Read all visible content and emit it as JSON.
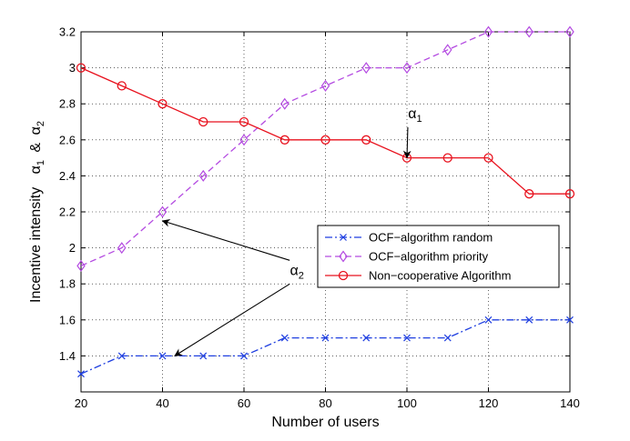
{
  "chart_data": {
    "type": "line",
    "title": "",
    "xlabel": "Number of users",
    "ylabel": "Incentive intensity",
    "ylabel_alpha1": "α",
    "ylabel_sub1": "1",
    "ylabel_amp": "&",
    "ylabel_alpha2": "α",
    "ylabel_sub2": "2",
    "xlim": [
      20,
      140
    ],
    "ylim": [
      1.2,
      3.2
    ],
    "xticks": [
      20,
      40,
      60,
      80,
      100,
      120,
      140
    ],
    "yticks": [
      1.4,
      1.6,
      1.8,
      2.0,
      2.2,
      2.4,
      2.6,
      2.8,
      3.0,
      3.2
    ],
    "ytick_labels": [
      "1.4",
      "1.6",
      "1.8",
      "2",
      "2.2",
      "2.4",
      "2.6",
      "2.8",
      "3",
      "3.2"
    ],
    "grid": true,
    "legend_position": "center-right",
    "x": [
      20,
      30,
      40,
      50,
      60,
      70,
      80,
      90,
      100,
      110,
      120,
      130,
      140
    ],
    "series": [
      {
        "name": "OCF−algorithm random",
        "color": "#1f3fe0",
        "marker": "x",
        "linestyle": "dashdot",
        "values": [
          1.3,
          1.4,
          1.4,
          1.4,
          1.4,
          1.5,
          1.5,
          1.5,
          1.5,
          1.5,
          1.6,
          1.6,
          1.6
        ]
      },
      {
        "name": "OCF−algorithm priority",
        "color": "#b44be1",
        "marker": "diamond",
        "linestyle": "dashed",
        "values": [
          1.9,
          2.0,
          2.2,
          2.4,
          2.6,
          2.8,
          2.9,
          3.0,
          3.0,
          3.1,
          3.2,
          3.2,
          3.2
        ]
      },
      {
        "name": "Non−cooperative Algorithm",
        "color": "#e8111d",
        "marker": "circle",
        "linestyle": "solid",
        "values": [
          3.0,
          2.9,
          2.8,
          2.7,
          2.7,
          2.6,
          2.6,
          2.6,
          2.5,
          2.5,
          2.5,
          2.3,
          2.3
        ]
      }
    ],
    "annotations": [
      {
        "label": "α",
        "sub": "1",
        "text_at": [
          102,
          2.72
        ],
        "arrows_to": [
          [
            100,
            2.5
          ]
        ]
      },
      {
        "label": "α",
        "sub": "2",
        "text_at": [
          73,
          1.85
        ],
        "arrows_to": [
          [
            40,
            2.15
          ],
          [
            43,
            1.4
          ]
        ]
      }
    ]
  }
}
